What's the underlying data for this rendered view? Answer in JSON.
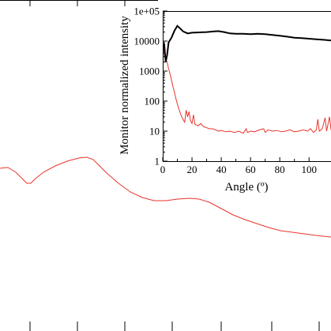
{
  "chart_data": [
    {
      "type": "line",
      "role": "main",
      "series": [
        {
          "color": "#e8352b",
          "points": [
            [
              0,
              213
            ],
            [
              10,
              212
            ],
            [
              20,
              218
            ],
            [
              28,
              226
            ],
            [
              34,
              232
            ],
            [
              39,
              232
            ],
            [
              45,
              226
            ],
            [
              55,
              218
            ],
            [
              70,
              210
            ],
            [
              85,
              204
            ],
            [
              100,
              200
            ],
            [
              110,
              199
            ],
            [
              118,
              202
            ],
            [
              125,
              209
            ],
            [
              135,
              219
            ],
            [
              150,
              232
            ],
            [
              165,
              243
            ],
            [
              180,
              250
            ],
            [
              195,
              254
            ],
            [
              210,
              254
            ],
            [
              225,
              252
            ],
            [
              240,
              251
            ],
            [
              252,
              252
            ],
            [
              265,
              256
            ],
            [
              280,
              264
            ],
            [
              295,
              272
            ],
            [
              310,
              278
            ],
            [
              325,
              283
            ],
            [
              340,
              288
            ],
            [
              355,
              292
            ],
            [
              370,
              294
            ],
            [
              385,
              296
            ],
            [
              400,
              298
            ],
            [
              419,
              300
            ]
          ]
        }
      ]
    },
    {
      "type": "line",
      "role": "inset",
      "xlabel": "Angle (º)",
      "ylabel": "Monitor normalized intensity",
      "xlim": [
        0,
        115
      ],
      "ylim": [
        1,
        100000
      ],
      "yscale": "log",
      "xticks": [
        "0",
        "20",
        "40",
        "60",
        "80",
        "100"
      ],
      "yticks": [
        "1",
        "10",
        "100",
        "1000",
        "10000",
        "1e+05"
      ],
      "series": [
        {
          "color": "#000000",
          "points": [
            [
              1,
              8000
            ],
            [
              2,
              2000
            ],
            [
              3,
              3500
            ],
            [
              4,
              9000
            ],
            [
              6,
              13000
            ],
            [
              8,
              22000
            ],
            [
              10,
              32000
            ],
            [
              12,
              26000
            ],
            [
              14,
              21000
            ],
            [
              17,
              18000
            ],
            [
              20,
              19000
            ],
            [
              25,
              19500
            ],
            [
              30,
              20000
            ],
            [
              35,
              21000
            ],
            [
              38,
              21500
            ],
            [
              42,
              20000
            ],
            [
              46,
              18000
            ],
            [
              50,
              17500
            ],
            [
              55,
              17500
            ],
            [
              60,
              17000
            ],
            [
              65,
              17500
            ],
            [
              70,
              17000
            ],
            [
              75,
              16000
            ],
            [
              80,
              15000
            ],
            [
              85,
              14000
            ],
            [
              90,
              13000
            ],
            [
              95,
              12500
            ],
            [
              100,
              12000
            ],
            [
              105,
              11500
            ],
            [
              110,
              11000
            ],
            [
              115,
              10500
            ]
          ]
        },
        {
          "color": "#e8352b",
          "points": [
            [
              0.5,
              3000
            ],
            [
              1,
              9000
            ],
            [
              1.5,
              5000
            ],
            [
              2,
              2500
            ],
            [
              3,
              2000
            ],
            [
              4,
              1200
            ],
            [
              5,
              800
            ],
            [
              6,
              500
            ],
            [
              7,
              300
            ],
            [
              8,
              200
            ],
            [
              9,
              120
            ],
            [
              10,
              80
            ],
            [
              11,
              55
            ],
            [
              12,
              40
            ],
            [
              13,
              30
            ],
            [
              14,
              24
            ],
            [
              15,
              20
            ],
            [
              16,
              50
            ],
            [
              17,
              30
            ],
            [
              18,
              45
            ],
            [
              19,
              22
            ],
            [
              20,
              18
            ],
            [
              21,
              35
            ],
            [
              22,
              17
            ],
            [
              24,
              15
            ],
            [
              26,
              18
            ],
            [
              28,
              14
            ],
            [
              30,
              13
            ],
            [
              32,
              12
            ],
            [
              34,
              12
            ],
            [
              36,
              11
            ],
            [
              38,
              10
            ],
            [
              40,
              10.5
            ],
            [
              43,
              9.5
            ],
            [
              46,
              10
            ],
            [
              49,
              9
            ],
            [
              52,
              10
            ],
            [
              55,
              8.5
            ],
            [
              57,
              12
            ],
            [
              58,
              9
            ],
            [
              60,
              10
            ],
            [
              63,
              9.5
            ],
            [
              66,
              11
            ],
            [
              69,
              12
            ],
            [
              70,
              9
            ],
            [
              72,
              11
            ],
            [
              75,
              10
            ],
            [
              78,
              10.5
            ],
            [
              81,
              9.5
            ],
            [
              84,
              10
            ],
            [
              87,
              11
            ],
            [
              90,
              9.5
            ],
            [
              93,
              10
            ],
            [
              96,
              11
            ],
            [
              99,
              10
            ],
            [
              101,
              12
            ],
            [
              103,
              9
            ],
            [
              105,
              11
            ],
            [
              106,
              25
            ],
            [
              107,
              10
            ],
            [
              109,
              12
            ],
            [
              111,
              28
            ],
            [
              112,
              10
            ],
            [
              114,
              30
            ],
            [
              115,
              11
            ]
          ]
        }
      ]
    }
  ]
}
